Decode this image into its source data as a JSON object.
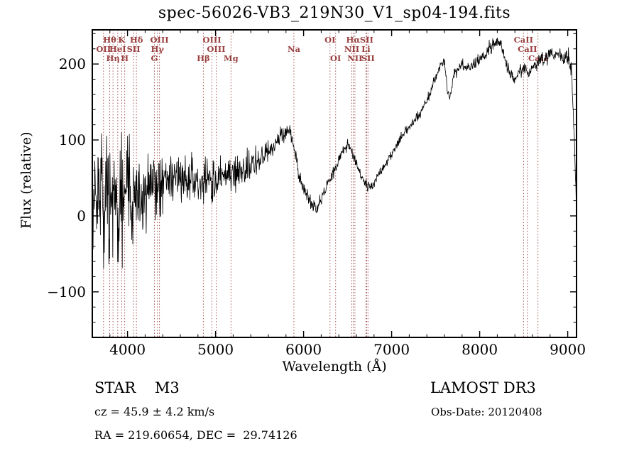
{
  "title": "spec-56026-VB3_219N30_V1_sp04-194.fits",
  "annotations": {
    "object_class": "STAR    M3",
    "cz": "cz = 45.9 ± 4.2 km/s",
    "radec": "RA = 219.60654, DEC =  29.74126",
    "survey": "LAMOST DR3",
    "obsdate": "Obs-Date: 20120408"
  },
  "chart_data": {
    "type": "line",
    "title": "spec-56026-VB3_219N30_V1_sp04-194.fits",
    "xlabel": "Wavelength (Å)",
    "ylabel": "Flux (relative)",
    "xlim": [
      3600,
      9100
    ],
    "ylim": [
      -160,
      245
    ],
    "xticks": [
      4000,
      5000,
      6000,
      7000,
      8000,
      9000
    ],
    "yticks": [
      -100,
      0,
      100,
      200
    ],
    "grid": false,
    "legend": "none",
    "line_color": "#000000",
    "marker_color": "#9a4040",
    "series": [
      {
        "name": "spectrum",
        "note": "noisy stellar spectrum; anchors give mean flux and noise amplitude vs wavelength (Å)",
        "anchors": {
          "w": [
            3600,
            3650,
            3700,
            3750,
            3800,
            3850,
            3900,
            3950,
            4000,
            4050,
            4100,
            4150,
            4200,
            4300,
            4400,
            4500,
            4600,
            4700,
            4800,
            4900,
            5000,
            5100,
            5200,
            5300,
            5400,
            5500,
            5600,
            5700,
            5800,
            5850,
            5900,
            5950,
            6000,
            6050,
            6100,
            6150,
            6200,
            6250,
            6300,
            6350,
            6400,
            6450,
            6500,
            6550,
            6600,
            6650,
            6700,
            6750,
            6800,
            6850,
            6900,
            7000,
            7100,
            7200,
            7300,
            7400,
            7500,
            7550,
            7600,
            7640,
            7660,
            7700,
            7800,
            7850,
            7900,
            8000,
            8100,
            8200,
            8250,
            8300,
            8350,
            8400,
            8450,
            8500,
            8550,
            8600,
            8650,
            8700,
            8750,
            8800,
            8850,
            8900,
            8950,
            9000,
            9040,
            9070,
            9100
          ],
          "f": [
            30,
            25,
            30,
            22,
            30,
            25,
            28,
            25,
            30,
            26,
            30,
            33,
            35,
            40,
            40,
            45,
            43,
            45,
            48,
            50,
            48,
            52,
            55,
            62,
            68,
            76,
            86,
            100,
            110,
            107,
            82,
            55,
            35,
            22,
            14,
            12,
            20,
            34,
            48,
            60,
            74,
            86,
            92,
            84,
            70,
            54,
            42,
            38,
            43,
            54,
            64,
            80,
            104,
            117,
            130,
            150,
            184,
            198,
            204,
            160,
            150,
            184,
            200,
            194,
            196,
            206,
            220,
            230,
            224,
            200,
            186,
            180,
            190,
            196,
            186,
            194,
            200,
            210,
            206,
            214,
            208,
            214,
            206,
            210,
            190,
            120,
            10
          ],
          "n": [
            90,
            92,
            90,
            92,
            88,
            85,
            80,
            76,
            70,
            66,
            60,
            55,
            50,
            45,
            40,
            36,
            32,
            30,
            28,
            26,
            25,
            24,
            23,
            21,
            19,
            17,
            16,
            14,
            13,
            12,
            11,
            10,
            10,
            9,
            9,
            8,
            8,
            8,
            8,
            8,
            8,
            8,
            8,
            8,
            7,
            7,
            7,
            7,
            6,
            6,
            6,
            6,
            6,
            6,
            7,
            7,
            7,
            7,
            7,
            7,
            7,
            7,
            7,
            7,
            7,
            8,
            8,
            8,
            8,
            8,
            8,
            8,
            8,
            8,
            8,
            8,
            9,
            9,
            9,
            10,
            10,
            10,
            11,
            12,
            14,
            16,
            10
          ]
        }
      }
    ],
    "spectral_lines": [
      {
        "wavelength": 3727,
        "label": "OII",
        "row": 1
      },
      {
        "wavelength": 3798,
        "label": "Hθ",
        "row": 0
      },
      {
        "wavelength": 3835,
        "label": "Hη",
        "row": 2
      },
      {
        "wavelength": 3889,
        "label": "HeI",
        "row": 1
      },
      {
        "wavelength": 3933,
        "label": "K",
        "row": 0
      },
      {
        "wavelength": 3968,
        "label": "H",
        "row": 2
      },
      {
        "wavelength": 4069,
        "label": "SII",
        "row": 1
      },
      {
        "wavelength": 4101,
        "label": "Hδ",
        "row": 0
      },
      {
        "wavelength": 4305,
        "label": "G",
        "row": 2
      },
      {
        "wavelength": 4340,
        "label": "Hγ",
        "row": 1
      },
      {
        "wavelength": 4363,
        "label": "OIII",
        "row": 0
      },
      {
        "wavelength": 4861,
        "label": "Hβ",
        "row": 2
      },
      {
        "wavelength": 4959,
        "label": "OIII",
        "row": 0
      },
      {
        "wavelength": 5007,
        "label": "OIII",
        "row": 1
      },
      {
        "wavelength": 5175,
        "label": "Mg",
        "row": 2
      },
      {
        "wavelength": 5890,
        "label": "Na",
        "row": 1
      },
      {
        "wavelength": 6300,
        "label": "OI",
        "row": 0
      },
      {
        "wavelength": 6364,
        "label": "OI",
        "row": 2
      },
      {
        "wavelength": 6548,
        "label": "NII",
        "row": 1
      },
      {
        "wavelength": 6563,
        "label": "Hα",
        "row": 0
      },
      {
        "wavelength": 6583,
        "label": "NII",
        "row": 2
      },
      {
        "wavelength": 6708,
        "label": "Li",
        "row": 1
      },
      {
        "wavelength": 6716,
        "label": "SII",
        "row": 0
      },
      {
        "wavelength": 6731,
        "label": "SII",
        "row": 2
      },
      {
        "wavelength": 8498,
        "label": "CaII",
        "row": 0
      },
      {
        "wavelength": 8542,
        "label": "CaII",
        "row": 1
      },
      {
        "wavelength": 8662,
        "label": "CaII",
        "row": 2
      }
    ]
  }
}
